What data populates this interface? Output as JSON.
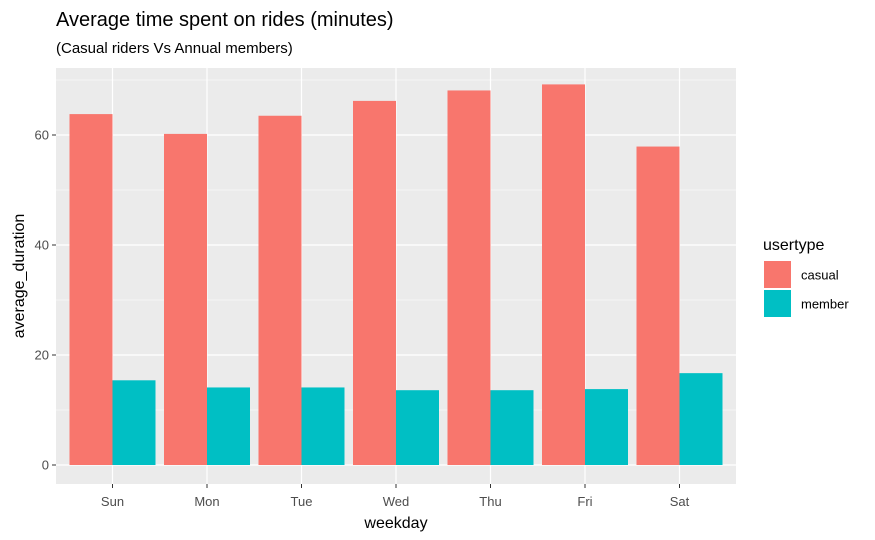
{
  "chart_data": {
    "type": "bar",
    "title": "Average time spent on rides (minutes)",
    "subtitle": "(Casual riders Vs Annual members)",
    "xlabel": "weekday",
    "ylabel": "average_duration",
    "categories": [
      "Sun",
      "Mon",
      "Tue",
      "Wed",
      "Thu",
      "Fri",
      "Sat"
    ],
    "ylim": [
      0,
      72
    ],
    "yticks": [
      0,
      20,
      40,
      60
    ],
    "grid": true,
    "legend": {
      "title": "usertype",
      "placement": "right"
    },
    "series": [
      {
        "name": "casual",
        "color": "#F8766D",
        "values": [
          63.8,
          60.2,
          63.5,
          66.2,
          68.1,
          69.2,
          57.9
        ]
      },
      {
        "name": "member",
        "color": "#00BFC4",
        "values": [
          15.4,
          14.1,
          14.1,
          13.6,
          13.6,
          13.8,
          16.7
        ]
      }
    ]
  }
}
